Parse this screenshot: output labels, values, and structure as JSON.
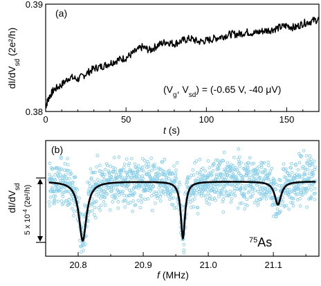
{
  "chart_data": [
    {
      "type": "line",
      "panel_label": "(a)",
      "xlabel_var": "t",
      "xlabel_unit": " (s)",
      "ylabel_main": "dI/dV",
      "ylabel_sub": "sd",
      "ylabel_unit": "(2e²/h)",
      "xlim": [
        0,
        170
      ],
      "ylim": [
        0.38,
        0.39
      ],
      "x_ticks": [
        0,
        50,
        100,
        150
      ],
      "x_tick_labels": [
        "0",
        "50",
        "100",
        "150"
      ],
      "y_ticks": [
        0.38,
        0.39
      ],
      "y_tick_labels": [
        "0.38",
        "0.39"
      ],
      "annotation": "(V_g, V_sd) = (-0.65 V, -40 μV)",
      "annotation_parts": [
        "(V",
        "g",
        ", V",
        "sd",
        ") = (-0.65 V, -40 μV)"
      ],
      "series": [
        {
          "x": [
            0,
            2,
            5,
            10,
            15,
            20,
            25,
            30,
            35,
            40,
            45,
            50,
            55,
            60,
            65,
            70,
            75,
            80,
            85,
            90,
            95,
            100,
            105,
            110,
            115,
            120,
            125,
            130,
            135,
            140,
            145,
            150,
            155,
            160,
            165,
            170
          ],
          "values": [
            0.3805,
            0.3813,
            0.382,
            0.3825,
            0.3832,
            0.383,
            0.3835,
            0.384,
            0.3842,
            0.3845,
            0.3848,
            0.385,
            0.3855,
            0.386,
            0.3857,
            0.3862,
            0.3865,
            0.3863,
            0.3866,
            0.3868,
            0.3865,
            0.3866,
            0.3868,
            0.387,
            0.3872,
            0.3872,
            0.3874,
            0.3873,
            0.3875,
            0.3876,
            0.3878,
            0.388,
            0.3878,
            0.3882,
            0.3884,
            0.3886
          ]
        }
      ]
    },
    {
      "type": "scatter",
      "panel_label": "(b)",
      "xlabel_var": "f",
      "xlabel_unit": " (MHz)",
      "ylabel_main": "dI/dV",
      "ylabel_sub": "sd",
      "scale_bar_label": "5 x 10",
      "scale_bar_exp": "-4",
      "scale_bar_unit": " (2e²/h)",
      "isotope_mass": "75",
      "isotope_symbol": "As",
      "xlim": [
        20.75,
        21.17
      ],
      "x_ticks": [
        20.8,
        20.9,
        21.0,
        21.1
      ],
      "x_tick_labels": [
        "20.8",
        "20.9",
        "21.0",
        "21.1"
      ],
      "baseline": 0.0,
      "dips": [
        {
          "center": 20.807,
          "depth": 4.6,
          "width": 0.007
        },
        {
          "center": 20.961,
          "depth": 4.4,
          "width": 0.004
        },
        {
          "center": 21.107,
          "depth": 1.8,
          "width": 0.006
        }
      ],
      "scatter_noise_sd": 0.9,
      "marker_color": "#87ceeb",
      "fit_color": "#000000"
    }
  ]
}
